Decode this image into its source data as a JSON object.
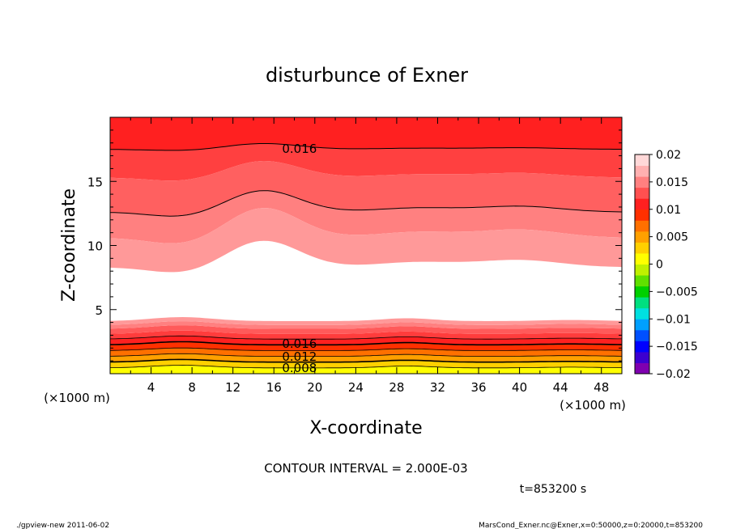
{
  "chart_data": {
    "type": "contour",
    "title": "disturbunce of Exner",
    "xlabel": "X-coordinate",
    "ylabel": "Z-coordinate",
    "x_unit": "(×1000 m)",
    "z_unit": "(×1000 m)",
    "xlim": [
      0,
      50
    ],
    "ylim": [
      0,
      20
    ],
    "x_ticks": [
      4,
      8,
      12,
      16,
      20,
      24,
      28,
      32,
      36,
      40,
      44,
      48
    ],
    "y_ticks": [
      5,
      10,
      15
    ],
    "contour_interval_text": "CONTOUR INTERVAL = 2.000E-03",
    "time_text": "t=853200 s",
    "contour_labels": [
      {
        "text": "0.016",
        "x": 18.5,
        "z": 17.6
      },
      {
        "text": "0.016",
        "x": 18.5,
        "z": 2.4
      },
      {
        "text": "0.012",
        "x": 18.5,
        "z": 1.4
      },
      {
        "text": "0.008",
        "x": 18.5,
        "z": 0.5
      }
    ],
    "colorbar": {
      "labels": [
        "0.02",
        "0.015",
        "0.01",
        "0.005",
        "0",
        "−0.005",
        "−0.01",
        "−0.015",
        "−0.02"
      ],
      "min": -0.02,
      "max": 0.02,
      "colors": [
        "#7f00b0",
        "#3c00d0",
        "#0000ff",
        "#0050ff",
        "#00a0ff",
        "#00e0e0",
        "#00e080",
        "#00d000",
        "#60e000",
        "#c0f000",
        "#ffff00",
        "#ffd000",
        "#ffa000",
        "#ff7000",
        "#ff3000",
        "#ff2020",
        "#ff5050",
        "#ff8080",
        "#ffb0b0",
        "#ffd8d8"
      ]
    },
    "lower_layer_colors": [
      "#ffff00",
      "#ffd000",
      "#ffa000",
      "#ff7000",
      "#ff3000",
      "#ff2020",
      "#ff3c3c",
      "#ff5a5a",
      "#ff8080",
      "#ff9999"
    ],
    "upper_layer_colors": [
      "#ff2020",
      "#ff4040",
      "#ff6060",
      "#ff8080",
      "#ff9999"
    ]
  },
  "footer": {
    "left": "./gpview-new   2011-06-02",
    "right": "MarsCond_Exner.nc@Exner,x=0:50000,z=0:20000,t=853200"
  }
}
